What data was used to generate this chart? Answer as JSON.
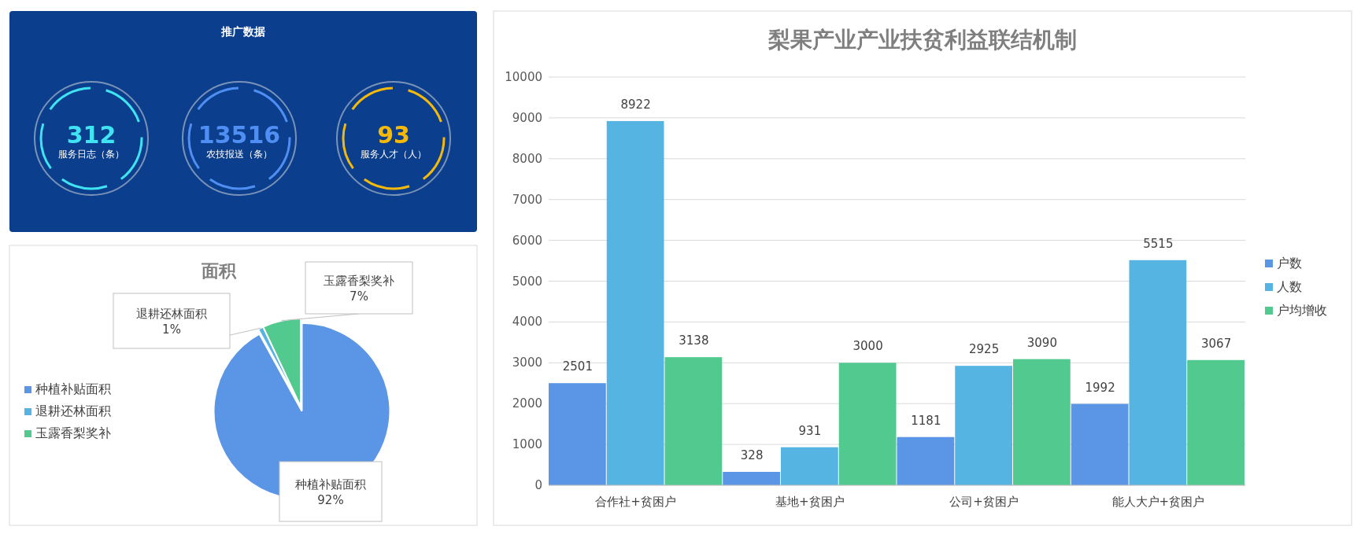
{
  "chart_data": [
    {
      "type": "other",
      "title": "推广数据",
      "categories": [
        "服务日志（条）",
        "农技报送（条）",
        "服务人才（人）"
      ],
      "values": [
        312,
        13516,
        93
      ],
      "data_labels": true
    },
    {
      "type": "pie",
      "title": "面积",
      "categories": [
        "种植补贴面积",
        "退耕还林面积",
        "玉露香梨奖补"
      ],
      "values": [
        92,
        1,
        7
      ],
      "colors": [
        "#5b96e6",
        "#56b4e3",
        "#52c98f"
      ],
      "legend": "left",
      "value_labels": [
        "92%",
        "1%",
        "7%"
      ]
    },
    {
      "type": "bar",
      "title": "梨果产业产业扶贫利益联结机制",
      "categories": [
        "合作社+贫困户",
        "基地+贫困户",
        "公司+贫困户",
        "能人大户+贫困户"
      ],
      "series": [
        {
          "name": "户数",
          "color": "#5b96e6",
          "values": [
            2501,
            328,
            1181,
            1992
          ]
        },
        {
          "name": "人数",
          "color": "#56b4e3",
          "values": [
            8922,
            931,
            2925,
            5515
          ]
        },
        {
          "name": "户均增收",
          "color": "#52c98f",
          "values": [
            3138,
            3000,
            3090,
            3067
          ]
        }
      ],
      "ylim": [
        0,
        10000
      ],
      "yticks": [
        0,
        1000,
        2000,
        3000,
        4000,
        5000,
        6000,
        7000,
        8000,
        9000,
        10000
      ],
      "grid": "y",
      "legend": "right",
      "data_labels": true
    }
  ]
}
